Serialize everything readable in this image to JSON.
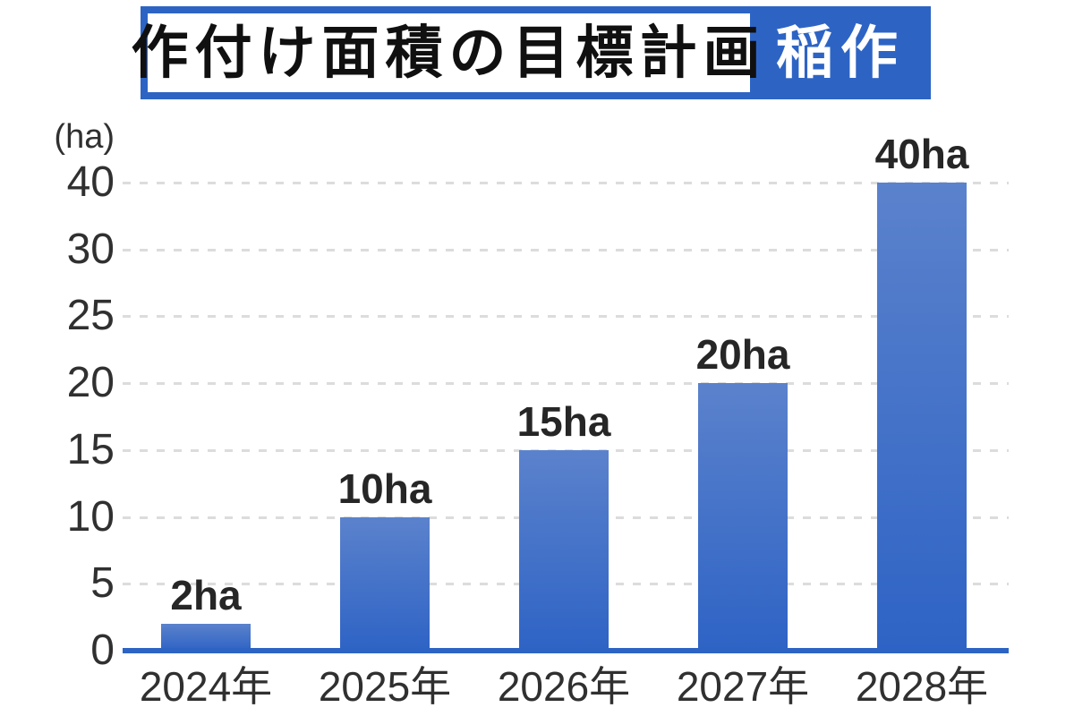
{
  "header": {
    "title": "作付け面積の目標計画",
    "badge": "稲作"
  },
  "colors": {
    "accent_blue": "#2d64c4",
    "bar_gradient_top": "#5b82cc",
    "bar_gradient_bottom": "#2e63c5",
    "gridline": "#dcdcdc",
    "text": "#303030",
    "title_text": "#101010",
    "background": "#ffffff"
  },
  "chart_data": {
    "type": "bar",
    "title": "作付け面積の目標計画",
    "category_badge": "稲作",
    "ylabel": "(ha)",
    "xlabel": "",
    "categories": [
      "2024年",
      "2025年",
      "2026年",
      "2027年",
      "2028年"
    ],
    "values": [
      2,
      10,
      15,
      20,
      40
    ],
    "bar_labels": [
      "2ha",
      "10ha",
      "15ha",
      "20ha",
      "40ha"
    ],
    "y_ticks": [
      0,
      5,
      10,
      15,
      20,
      25,
      30,
      40
    ],
    "ylim": [
      0,
      40
    ],
    "grid": "dashed horizontal",
    "legend": "none",
    "axis_note": "y ticks rendered at even spacing; 30-40 interval visually compressed"
  }
}
